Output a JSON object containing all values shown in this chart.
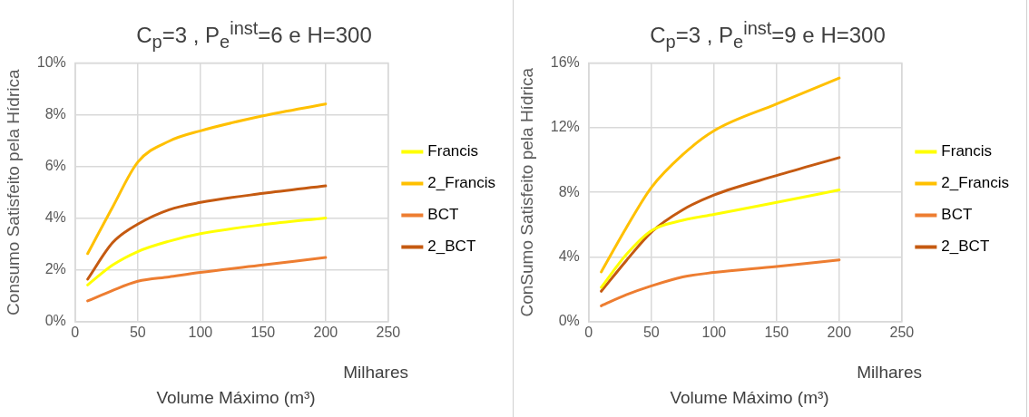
{
  "chart_data": [
    {
      "type": "line",
      "title": "C$_{p}$=3 , P$_{e}$$^{inst}$=6 e H=300",
      "xlabel": "Volume Máximo (m³)",
      "ylabel": "Consumo Satisfeito pela Hídrica",
      "annotations": [
        "Milhares"
      ],
      "x": [
        10,
        30,
        50,
        75,
        100,
        150,
        200
      ],
      "series": [
        {
          "name": "Francis",
          "color": "#ffff00",
          "values": [
            1.42,
            2.19,
            2.71,
            3.11,
            3.4,
            3.75,
            4.01
          ]
        },
        {
          "name": "2_Francis",
          "color": "#ffc000",
          "values": [
            2.63,
            4.44,
            6.17,
            6.98,
            7.38,
            7.96,
            8.42
          ]
        },
        {
          "name": "BCT",
          "color": "#ed7d31",
          "values": [
            0.8,
            1.21,
            1.56,
            1.73,
            1.9,
            2.19,
            2.48
          ]
        },
        {
          "name": "2_BCT",
          "color": "#c55a11",
          "values": [
            1.64,
            3.06,
            3.77,
            4.33,
            4.61,
            4.96,
            5.25
          ]
        }
      ],
      "xlim": [
        0,
        250
      ],
      "xticks": [
        0,
        50,
        100,
        150,
        200,
        250
      ],
      "ylim": [
        0,
        10
      ],
      "yticks": [
        {
          "value": 0,
          "label": "0%"
        },
        {
          "value": 2,
          "label": "2%"
        },
        {
          "value": 4,
          "label": "4%"
        },
        {
          "value": 6,
          "label": "6%"
        },
        {
          "value": 8,
          "label": "8%"
        },
        {
          "value": 10,
          "label": "10%"
        }
      ],
      "grid": true,
      "legend": "right",
      "marker": "none",
      "line_style": "solid"
    },
    {
      "type": "line",
      "title": "C$_{p}$=3 , P$_{e}$$^{inst}$=9 e H=300",
      "xlabel": "Volume Máximo (m³)",
      "ylabel": "ConSumo Satisfeito pela Hídrica",
      "annotations": [
        "Milhares"
      ],
      "x": [
        10,
        30,
        50,
        75,
        100,
        150,
        200
      ],
      "series": [
        {
          "name": "Francis",
          "color": "#ffff00",
          "values": [
            2.12,
            4.15,
            5.63,
            6.27,
            6.64,
            7.38,
            8.15
          ]
        },
        {
          "name": "2_Francis",
          "color": "#ffc000",
          "values": [
            3.08,
            5.81,
            8.3,
            10.33,
            11.81,
            13.47,
            15.07
          ]
        },
        {
          "name": "BCT",
          "color": "#ed7d31",
          "values": [
            0.98,
            1.66,
            2.21,
            2.77,
            3.04,
            3.41,
            3.82
          ]
        },
        {
          "name": "2_BCT",
          "color": "#c55a11",
          "values": [
            1.88,
            3.78,
            5.54,
            6.92,
            7.84,
            9.04,
            10.15
          ]
        }
      ],
      "xlim": [
        0,
        250
      ],
      "xticks": [
        0,
        50,
        100,
        150,
        200,
        250
      ],
      "ylim": [
        0,
        16
      ],
      "yticks": [
        {
          "value": 0,
          "label": "0%"
        },
        {
          "value": 4,
          "label": "4%"
        },
        {
          "value": 8,
          "label": "8%"
        },
        {
          "value": 12,
          "label": "12%"
        },
        {
          "value": 16,
          "label": "16%"
        }
      ],
      "grid": true,
      "legend": "right",
      "marker": "none",
      "line_style": "solid"
    }
  ]
}
